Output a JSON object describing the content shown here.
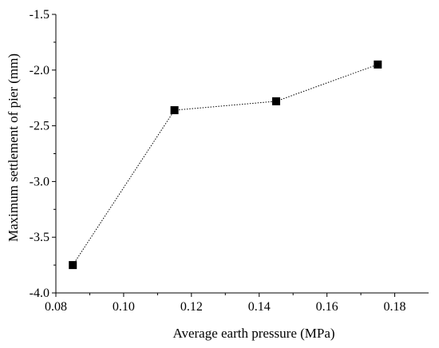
{
  "chart_data": {
    "type": "line",
    "title": "",
    "xlabel": "Average earth pressure (MPa)",
    "ylabel": "Maximum settlement of pier (mm)",
    "xlim": [
      0.08,
      0.19
    ],
    "ylim": [
      -4.0,
      -1.5
    ],
    "x_ticks": [
      0.08,
      0.1,
      0.12,
      0.14,
      0.16,
      0.18
    ],
    "x_tick_labels": [
      "0.08",
      "0.10",
      "0.12",
      "0.14",
      "0.16",
      "0.18"
    ],
    "y_ticks": [
      -4.0,
      -3.5,
      -3.0,
      -2.5,
      -2.0,
      -1.5
    ],
    "y_tick_labels": [
      "-4.0",
      "-3.5",
      "-3.0",
      "-2.5",
      "-2.0",
      "-1.5"
    ],
    "grid": false,
    "legend": "none",
    "series": [
      {
        "x": [
          0.085,
          0.115,
          0.145,
          0.175
        ],
        "y": [
          -3.75,
          -2.36,
          -2.28,
          -1.95
        ],
        "marker": "square",
        "line_style": "dotted",
        "color": "#000000"
      }
    ]
  }
}
